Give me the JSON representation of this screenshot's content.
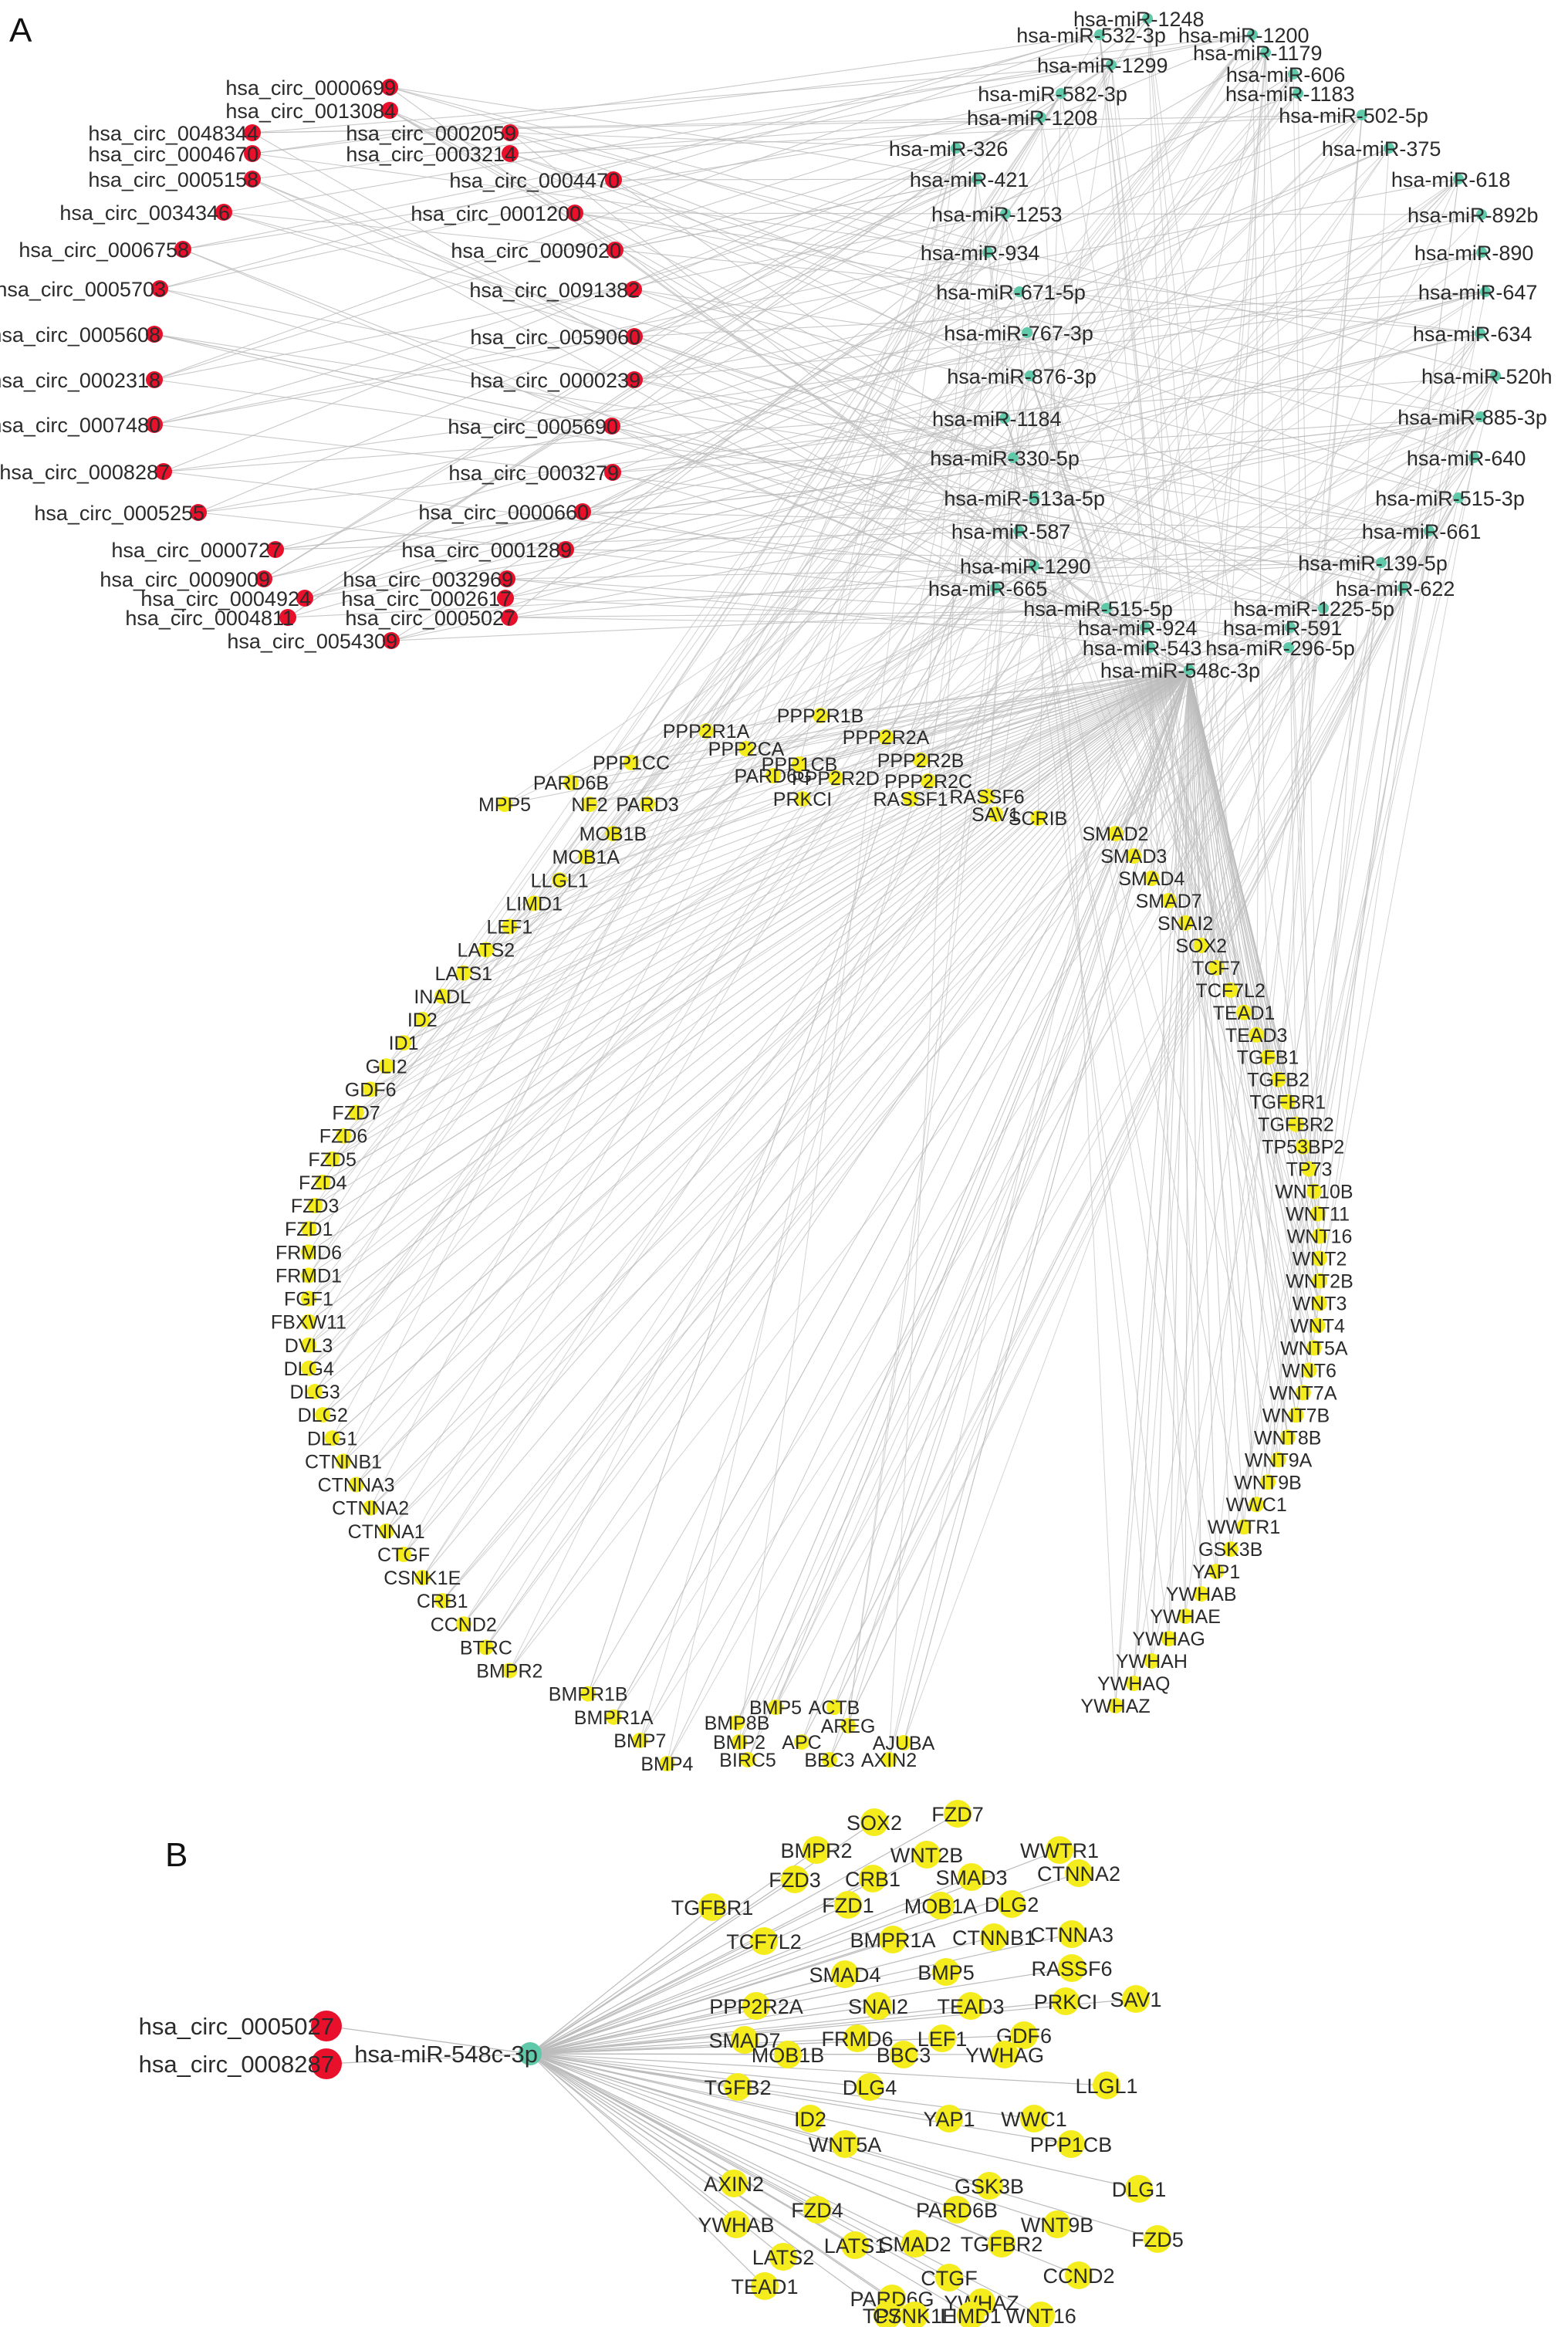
{
  "panels": {
    "a": "A",
    "b": "B"
  },
  "colors": {
    "circ": "#e8102a",
    "mirna": "#5fc9a9",
    "gene": "#f5ec1d",
    "edge": "#bcbcbc"
  },
  "panel_a": {
    "circRNAs": [
      "hsa_circ_0000699",
      "hsa_circ_0013084",
      "hsa_circ_0048344",
      "hsa_circ_0004670",
      "hsa_circ_0005158",
      "hsa_circ_0034346",
      "hsa_circ_0006758",
      "hsa_circ_0005703",
      "hsa_circ_0005608",
      "hsa_circ_0002318",
      "hsa_circ_0007480",
      "hsa_circ_0008287",
      "hsa_circ_0005255",
      "hsa_circ_0000727",
      "hsa_circ_0009009",
      "hsa_circ_0004924",
      "hsa_circ_0004811",
      "hsa_circ_0054309",
      "hsa_circ_0002059",
      "hsa_circ_0003214",
      "hsa_circ_0004470",
      "hsa_circ_0001200",
      "hsa_circ_0009020",
      "hsa_circ_0091382",
      "hsa_circ_0059060",
      "hsa_circ_0000239",
      "hsa_circ_0005690",
      "hsa_circ_0003279",
      "hsa_circ_0000660",
      "hsa_circ_0001289",
      "hsa_circ_0032969",
      "hsa_circ_0002617",
      "hsa_circ_0005027"
    ],
    "miRNAs": [
      "hsa-miR-1248",
      "hsa-miR-532-3p",
      "hsa-miR-1200",
      "hsa-miR-1299",
      "hsa-miR-1179",
      "hsa-miR-606",
      "hsa-miR-582-3p",
      "hsa-miR-1183",
      "hsa-miR-1208",
      "hsa-miR-502-5p",
      "hsa-miR-326",
      "hsa-miR-375",
      "hsa-miR-421",
      "hsa-miR-618",
      "hsa-miR-1253",
      "hsa-miR-892b",
      "hsa-miR-934",
      "hsa-miR-890",
      "hsa-miR-671-5p",
      "hsa-miR-647",
      "hsa-miR-767-3p",
      "hsa-miR-634",
      "hsa-miR-876-3p",
      "hsa-miR-520h",
      "hsa-miR-1184",
      "hsa-miR-885-3p",
      "hsa-miR-330-5p",
      "hsa-miR-640",
      "hsa-miR-513a-5p",
      "hsa-miR-515-3p",
      "hsa-miR-587",
      "hsa-miR-661",
      "hsa-miR-1290",
      "hsa-miR-139-5p",
      "hsa-miR-665",
      "hsa-miR-622",
      "hsa-miR-515-5p",
      "hsa-miR-1225-5p",
      "hsa-miR-924",
      "hsa-miR-591",
      "hsa-miR-543",
      "hsa-miR-296-5p",
      "hsa-miR-548c-3p"
    ],
    "genes_top": [
      "PPP2R1B",
      "PPP2R1A",
      "PPP2R2A",
      "PPP2CA",
      "PPP2R2B",
      "PPP1CC",
      "PARD6G",
      "PPP1CB",
      "PPP2R2D",
      "PPP2R2C",
      "PARD6B",
      "PRKCI",
      "RASSF1",
      "RASSF6",
      "NF2",
      "PARD3",
      "SAV1",
      "SCRIB",
      "MPP5"
    ],
    "genes_left": [
      "MOB1B",
      "MOB1A",
      "LLGL1",
      "LIMD1",
      "LEF1",
      "LATS2",
      "LATS1",
      "INADL",
      "ID2",
      "ID1",
      "GLI2",
      "GDF6",
      "FZD7",
      "FZD6",
      "FZD5",
      "FZD4",
      "FZD3",
      "FZD1",
      "FRMD6",
      "FRMD1",
      "FGF1",
      "FBXW11",
      "DVL3",
      "DLG4",
      "DLG3",
      "DLG2",
      "DLG1",
      "CTNNB1",
      "CTNNA3",
      "CTNNA2",
      "CTNNA1",
      "CTGF",
      "CSNK1E",
      "CRB1",
      "CCND2",
      "BTRC",
      "BMPR2",
      "BMPR1B",
      "BMPR1A",
      "BMP7",
      "BMP4"
    ],
    "genes_right": [
      "SMAD2",
      "SMAD3",
      "SMAD4",
      "SMAD7",
      "SNAI2",
      "SOX2",
      "TCF7",
      "TCF7L2",
      "TEAD1",
      "TEAD3",
      "TGFB1",
      "TGFB2",
      "TGFBR1",
      "TGFBR2",
      "TP53BP2",
      "TP73",
      "WNT10B",
      "WNT11",
      "WNT16",
      "WNT2",
      "WNT2B",
      "WNT3",
      "WNT4",
      "WNT5A",
      "WNT6",
      "WNT7A",
      "WNT7B",
      "WNT8B",
      "WNT9A",
      "WNT9B",
      "WWC1",
      "WWTR1",
      "GSK3B",
      "YAP1",
      "YWHAB",
      "YWHAE",
      "YWHAG",
      "YWHAH",
      "YWHAQ",
      "YWHAZ"
    ],
    "genes_bottom": [
      "BMP5",
      "BMP8B",
      "BMP2",
      "BIRC5",
      "APC",
      "BBC3",
      "ACTB",
      "AREG",
      "AXIN2",
      "AJUBA"
    ]
  },
  "panel_b": {
    "circRNAs": [
      "hsa_circ_0005027",
      "hsa_circ_0008287"
    ],
    "miRNA": "hsa-miR-548c-3p",
    "genes": [
      "SOX2",
      "FZD7",
      "BMPR2",
      "WWTR1",
      "WNT2B",
      "FZD3",
      "CRB1",
      "SMAD3",
      "CTNNA2",
      "TGFBR1",
      "FZD1",
      "MOB1A",
      "DLG2",
      "TCF7L2",
      "BMPR1A",
      "CTNNB1",
      "CTNNA3",
      "SMAD4",
      "BMP5",
      "RASSF6",
      "PPP2R2A",
      "SNAI2",
      "TEAD3",
      "PRKCI",
      "SAV1",
      "SMAD7",
      "FRMD6",
      "LEF1",
      "GDF6",
      "MOB1B",
      "BBC3",
      "YWHAG",
      "TGFB2",
      "DLG4",
      "LLGL1",
      "ID2",
      "YAP1",
      "WWC1",
      "WNT5A",
      "PPP1CB",
      "AXIN2",
      "GSK3B",
      "DLG1",
      "FZD4",
      "PARD6B",
      "YWHAB",
      "WNT9B",
      "LATS1",
      "SMAD2",
      "TGFBR2",
      "FZD5",
      "LATS2",
      "CTGF",
      "CCND2",
      "TEAD1",
      "PARD6G",
      "YWHAZ",
      "TP73",
      "WNT16",
      "LIMD1",
      "CSNK1E"
    ]
  }
}
